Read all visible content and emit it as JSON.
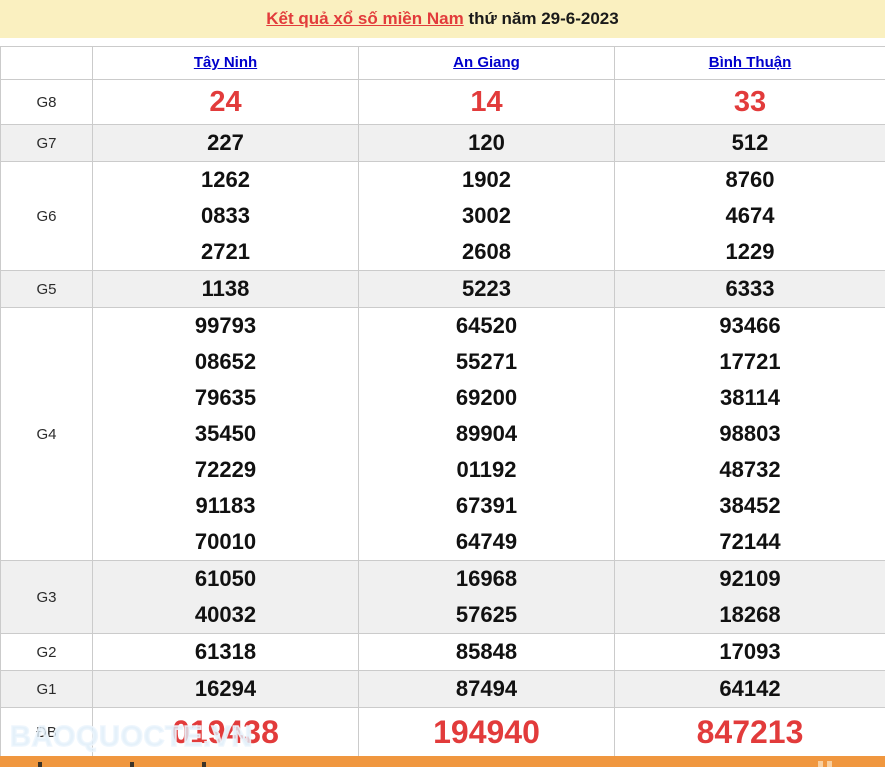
{
  "title": {
    "link_text": "Kết quả xổ số miền Nam",
    "suffix": " thứ năm 29-6-2023"
  },
  "table": {
    "provinces": [
      "Tây Ninh",
      "An Giang",
      "Bình Thuận"
    ],
    "rows": [
      {
        "id": "g8",
        "label": "G8",
        "style": "g8",
        "shade": false,
        "values": [
          [
            "24"
          ],
          [
            "14"
          ],
          [
            "33"
          ]
        ]
      },
      {
        "id": "g7",
        "label": "G7",
        "style": "normal",
        "shade": true,
        "values": [
          [
            "227"
          ],
          [
            "120"
          ],
          [
            "512"
          ]
        ]
      },
      {
        "id": "g6",
        "label": "G6",
        "style": "normal",
        "shade": false,
        "values": [
          [
            "1262",
            "0833",
            "2721"
          ],
          [
            "1902",
            "3002",
            "2608"
          ],
          [
            "8760",
            "4674",
            "1229"
          ]
        ]
      },
      {
        "id": "g5",
        "label": "G5",
        "style": "normal",
        "shade": true,
        "values": [
          [
            "1138"
          ],
          [
            "5223"
          ],
          [
            "6333"
          ]
        ]
      },
      {
        "id": "g4",
        "label": "G4",
        "style": "normal",
        "shade": false,
        "values": [
          [
            "99793",
            "08652",
            "79635",
            "35450",
            "72229",
            "91183",
            "70010"
          ],
          [
            "64520",
            "55271",
            "69200",
            "89904",
            "01192",
            "67391",
            "64749"
          ],
          [
            "93466",
            "17721",
            "38114",
            "98803",
            "48732",
            "38452",
            "72144"
          ]
        ]
      },
      {
        "id": "g3",
        "label": "G3",
        "style": "normal",
        "shade": true,
        "values": [
          [
            "61050",
            "40032"
          ],
          [
            "16968",
            "57625"
          ],
          [
            "92109",
            "18268"
          ]
        ]
      },
      {
        "id": "g2",
        "label": "G2",
        "style": "normal",
        "shade": false,
        "values": [
          [
            "61318"
          ],
          [
            "85848"
          ],
          [
            "17093"
          ]
        ]
      },
      {
        "id": "g1",
        "label": "G1",
        "style": "normal",
        "shade": true,
        "values": [
          [
            "16294"
          ],
          [
            "87494"
          ],
          [
            "64142"
          ]
        ]
      },
      {
        "id": "db",
        "label": "ĐB",
        "style": "db",
        "shade": false,
        "values": [
          [
            "019438"
          ],
          [
            "194940"
          ],
          [
            "847213"
          ]
        ]
      }
    ]
  },
  "watermark": "BAOQUOCTE.VN",
  "colors": {
    "title_background": "#FAF0C0",
    "result_red": "#E23B3B",
    "link_blue": "#0000CC",
    "row_stripe": "#F0F0F0",
    "table_border": "#CBCBCB",
    "bottom_bar_orange": "#F0973F"
  }
}
